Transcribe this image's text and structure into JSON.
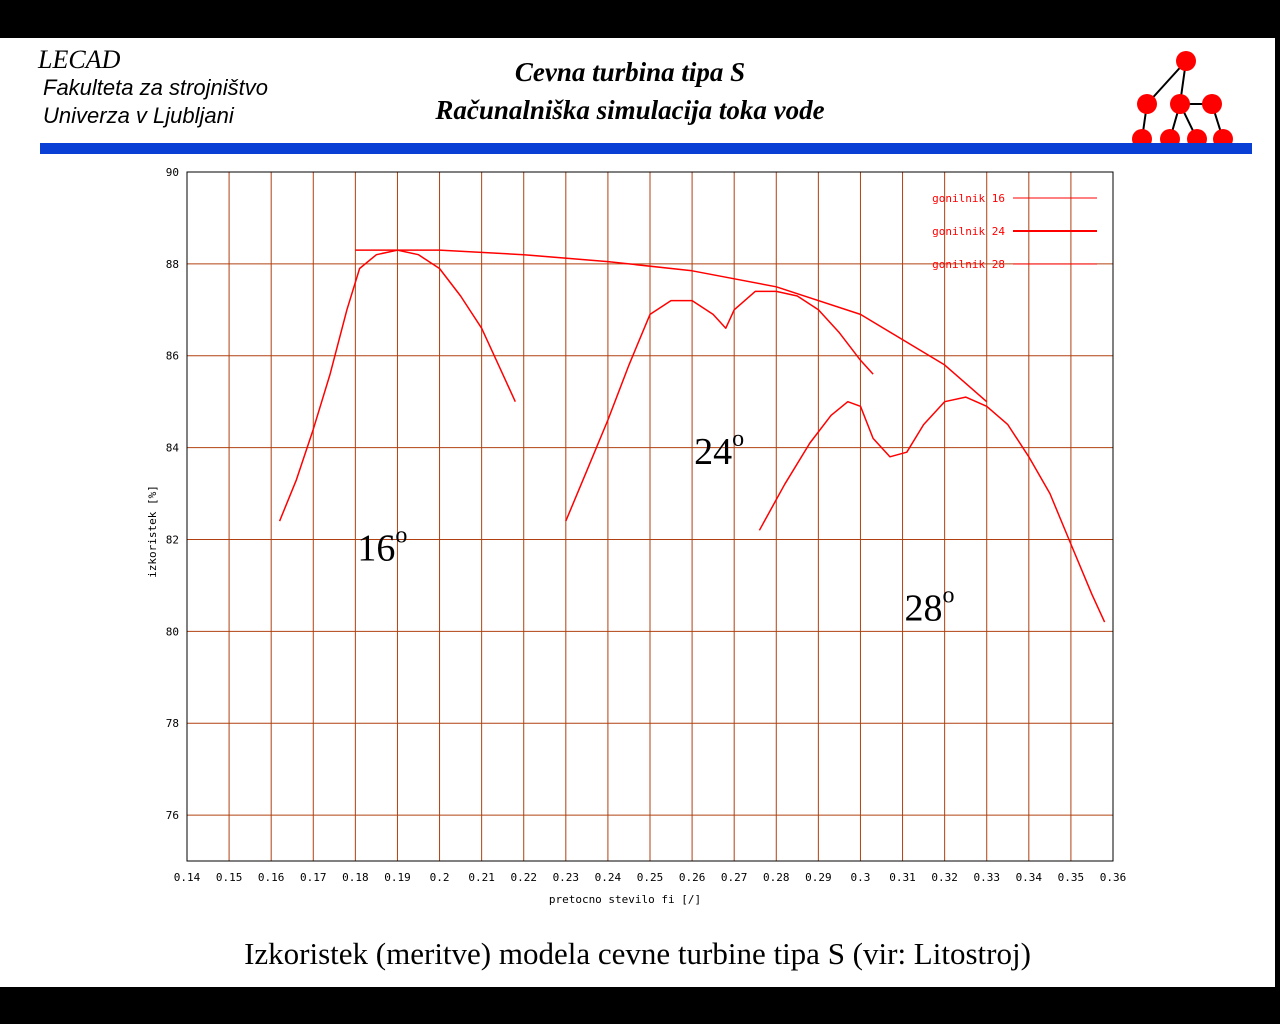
{
  "header": {
    "lab": "LECAD",
    "faculty": "Fakulteta za strojništvo",
    "university": "Univerza v Ljubljani",
    "title_line1": "Cevna turbina tipa S",
    "title_line2": "Računalniška simulacija toka vode"
  },
  "caption": "Izkoristek (meritve) modela cevne turbine tipa S (vir: Litostroj)",
  "colors": {
    "bar": "#0a3fd6",
    "grid": "#b04010",
    "curve": "#ff0000",
    "logo": "#ff0000"
  },
  "chart_data": {
    "type": "line",
    "xlabel": "pretocno stevilo fi [/]",
    "ylabel": "izkoristek [%]",
    "xlim": [
      0.14,
      0.36
    ],
    "ylim": [
      75,
      90
    ],
    "xticks": [
      "0.14",
      "0.15",
      "0.16",
      "0.17",
      "0.18",
      "0.19",
      "0.2",
      "0.21",
      "0.22",
      "0.23",
      "0.24",
      "0.25",
      "0.26",
      "0.27",
      "0.28",
      "0.29",
      "0.3",
      "0.31",
      "0.32",
      "0.33",
      "0.34",
      "0.35",
      "0.36"
    ],
    "yticks": [
      "76",
      "78",
      "80",
      "82",
      "84",
      "86",
      "88",
      "90"
    ],
    "grid": true,
    "legend_position": "top-right",
    "series": [
      {
        "name": "gonilnik 16",
        "points": [
          [
            0.162,
            82.4
          ],
          [
            0.166,
            83.3
          ],
          [
            0.17,
            84.4
          ],
          [
            0.174,
            85.6
          ],
          [
            0.178,
            87.0
          ],
          [
            0.181,
            87.9
          ],
          [
            0.185,
            88.2
          ],
          [
            0.19,
            88.3
          ],
          [
            0.195,
            88.2
          ],
          [
            0.2,
            87.9
          ],
          [
            0.205,
            87.3
          ],
          [
            0.21,
            86.6
          ],
          [
            0.214,
            85.8
          ],
          [
            0.218,
            85.0
          ]
        ]
      },
      {
        "name": "gonilnik 24",
        "points": [
          [
            0.23,
            82.4
          ],
          [
            0.235,
            83.5
          ],
          [
            0.24,
            84.6
          ],
          [
            0.245,
            85.8
          ],
          [
            0.25,
            86.9
          ],
          [
            0.255,
            87.2
          ],
          [
            0.26,
            87.2
          ],
          [
            0.265,
            86.9
          ],
          [
            0.268,
            86.6
          ],
          [
            0.27,
            87.0
          ],
          [
            0.275,
            87.4
          ],
          [
            0.28,
            87.4
          ],
          [
            0.285,
            87.3
          ],
          [
            0.29,
            87.0
          ],
          [
            0.295,
            86.5
          ],
          [
            0.3,
            85.9
          ],
          [
            0.303,
            85.6
          ]
        ]
      },
      {
        "name": "gonilnik 28",
        "points": [
          [
            0.276,
            82.2
          ],
          [
            0.282,
            83.2
          ],
          [
            0.288,
            84.1
          ],
          [
            0.293,
            84.7
          ],
          [
            0.297,
            85.0
          ],
          [
            0.3,
            84.9
          ],
          [
            0.303,
            84.2
          ],
          [
            0.307,
            83.8
          ],
          [
            0.311,
            83.9
          ],
          [
            0.315,
            84.5
          ],
          [
            0.32,
            85.0
          ],
          [
            0.325,
            85.1
          ],
          [
            0.33,
            84.9
          ],
          [
            0.335,
            84.5
          ],
          [
            0.34,
            83.8
          ],
          [
            0.345,
            83.0
          ],
          [
            0.35,
            81.9
          ],
          [
            0.355,
            80.8
          ],
          [
            0.358,
            80.2
          ]
        ]
      },
      {
        "name": "",
        "points": [
          [
            0.18,
            88.3
          ],
          [
            0.2,
            88.3
          ],
          [
            0.22,
            88.2
          ],
          [
            0.24,
            88.05
          ],
          [
            0.26,
            87.85
          ],
          [
            0.28,
            87.5
          ],
          [
            0.3,
            86.9
          ],
          [
            0.32,
            85.8
          ],
          [
            0.33,
            85.0
          ]
        ]
      }
    ],
    "annotations": [
      {
        "text": "16",
        "sup": "o",
        "x": 0.18,
        "y": 81.8
      },
      {
        "text": "24",
        "sup": "o",
        "x": 0.26,
        "y": 83.9
      },
      {
        "text": "28",
        "sup": "o",
        "x": 0.31,
        "y": 80.5
      }
    ]
  }
}
